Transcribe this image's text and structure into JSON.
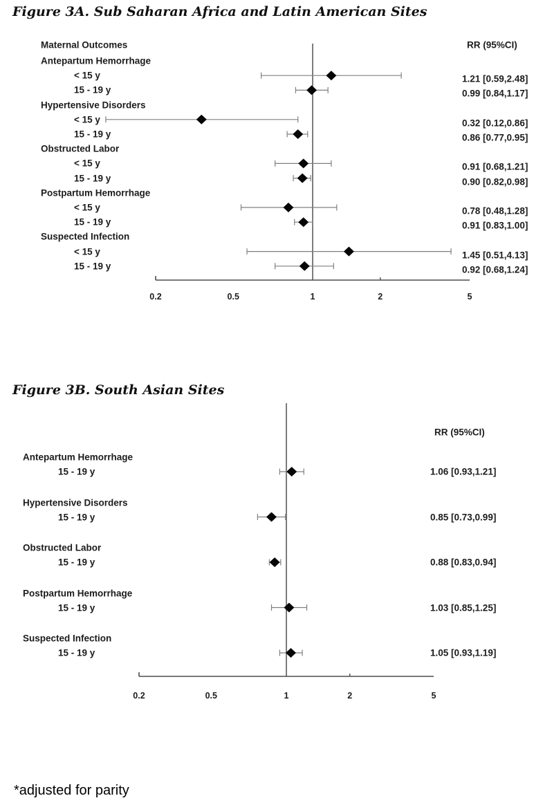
{
  "footnote": "*adjusted for parity",
  "chart_data": [
    {
      "type": "scatter",
      "subtype": "forest-plot",
      "title": "Figure 3A. Sub Saharan Africa and Latin American Sites",
      "column_header": "Maternal Outcomes",
      "rr_header": "RR (95%CI)",
      "x_axis": {
        "scale": "log",
        "range": [
          0.2,
          5
        ],
        "ticks": [
          0.2,
          0.5,
          1,
          2,
          5
        ],
        "tick_labels": [
          "0.2",
          "0.5",
          "1",
          "2",
          "5"
        ],
        "reference_line": 1,
        "grid": false
      },
      "groups": [
        {
          "outcome": "Antepartum Hemorrhage",
          "rows": [
            {
              "age": "< 15 y",
              "rr": 1.21,
              "ci_low": 0.59,
              "ci_high": 2.48,
              "rr_text": "1.21 [0.59,2.48]"
            },
            {
              "age": "15 - 19 y",
              "rr": 0.99,
              "ci_low": 0.84,
              "ci_high": 1.17,
              "rr_text": "0.99 [0.84,1.17]"
            }
          ]
        },
        {
          "outcome": "Hypertensive Disorders",
          "rows": [
            {
              "age": "< 15 y",
              "rr": 0.32,
              "ci_low": 0.12,
              "ci_high": 0.86,
              "rr_text": "0.32 [0.12,0.86]"
            },
            {
              "age": "15 - 19 y",
              "rr": 0.86,
              "ci_low": 0.77,
              "ci_high": 0.95,
              "rr_text": "0.86 [0.77,0.95]"
            }
          ]
        },
        {
          "outcome": "Obstructed Labor",
          "rows": [
            {
              "age": "< 15 y",
              "rr": 0.91,
              "ci_low": 0.68,
              "ci_high": 1.21,
              "rr_text": "0.91 [0.68,1.21]"
            },
            {
              "age": "15 - 19 y",
              "rr": 0.9,
              "ci_low": 0.82,
              "ci_high": 0.98,
              "rr_text": "0.90 [0.82,0.98]"
            }
          ]
        },
        {
          "outcome": "Postpartum Hemorrhage",
          "rows": [
            {
              "age": "< 15 y",
              "rr": 0.78,
              "ci_low": 0.48,
              "ci_high": 1.28,
              "rr_text": "0.78 [0.48,1.28]"
            },
            {
              "age": "15 - 19 y",
              "rr": 0.91,
              "ci_low": 0.83,
              "ci_high": 1.0,
              "rr_text": "0.91 [0.83,1.00]"
            }
          ]
        },
        {
          "outcome": "Suspected Infection",
          "rows": [
            {
              "age": "< 15 y",
              "rr": 1.45,
              "ci_low": 0.51,
              "ci_high": 4.13,
              "rr_text": "1.45 [0.51,4.13]"
            },
            {
              "age": "15 - 19 y",
              "rr": 0.92,
              "ci_low": 0.68,
              "ci_high": 1.24,
              "rr_text": "0.92 [0.68,1.24]"
            }
          ]
        }
      ]
    },
    {
      "type": "scatter",
      "subtype": "forest-plot",
      "title": "Figure 3B. South Asian Sites",
      "rr_header": "RR (95%CI)",
      "x_axis": {
        "scale": "log",
        "range": [
          0.2,
          5
        ],
        "ticks": [
          0.2,
          0.5,
          1,
          2,
          5
        ],
        "tick_labels": [
          "0.2",
          "0.5",
          "1",
          "2",
          "5"
        ],
        "reference_line": 1,
        "grid": false
      },
      "groups": [
        {
          "outcome": "Antepartum Hemorrhage",
          "rows": [
            {
              "age": "15 - 19 y",
              "rr": 1.06,
              "ci_low": 0.93,
              "ci_high": 1.21,
              "rr_text": "1.06 [0.93,1.21]"
            }
          ]
        },
        {
          "outcome": "Hypertensive Disorders",
          "rows": [
            {
              "age": "15 - 19 y",
              "rr": 0.85,
              "ci_low": 0.73,
              "ci_high": 0.99,
              "rr_text": "0.85 [0.73,0.99]"
            }
          ]
        },
        {
          "outcome": "Obstructed Labor",
          "rows": [
            {
              "age": "15 - 19 y",
              "rr": 0.88,
              "ci_low": 0.83,
              "ci_high": 0.94,
              "rr_text": "0.88 [0.83,0.94]"
            }
          ]
        },
        {
          "outcome": "Postpartum Hemorrhage",
          "rows": [
            {
              "age": "15 - 19 y",
              "rr": 1.03,
              "ci_low": 0.85,
              "ci_high": 1.25,
              "rr_text": "1.03 [0.85,1.25]"
            }
          ]
        },
        {
          "outcome": "Suspected Infection",
          "rows": [
            {
              "age": "15 - 19 y",
              "rr": 1.05,
              "ci_low": 0.93,
              "ci_high": 1.19,
              "rr_text": "1.05 [0.93,1.19]"
            }
          ]
        }
      ]
    }
  ],
  "colors": {
    "text": "#1c1c1c",
    "diamond": "#060606",
    "ci_line": "#7f7f7f",
    "axis_line": "#4d4d4d",
    "reference_line": "#6e6e6e"
  }
}
